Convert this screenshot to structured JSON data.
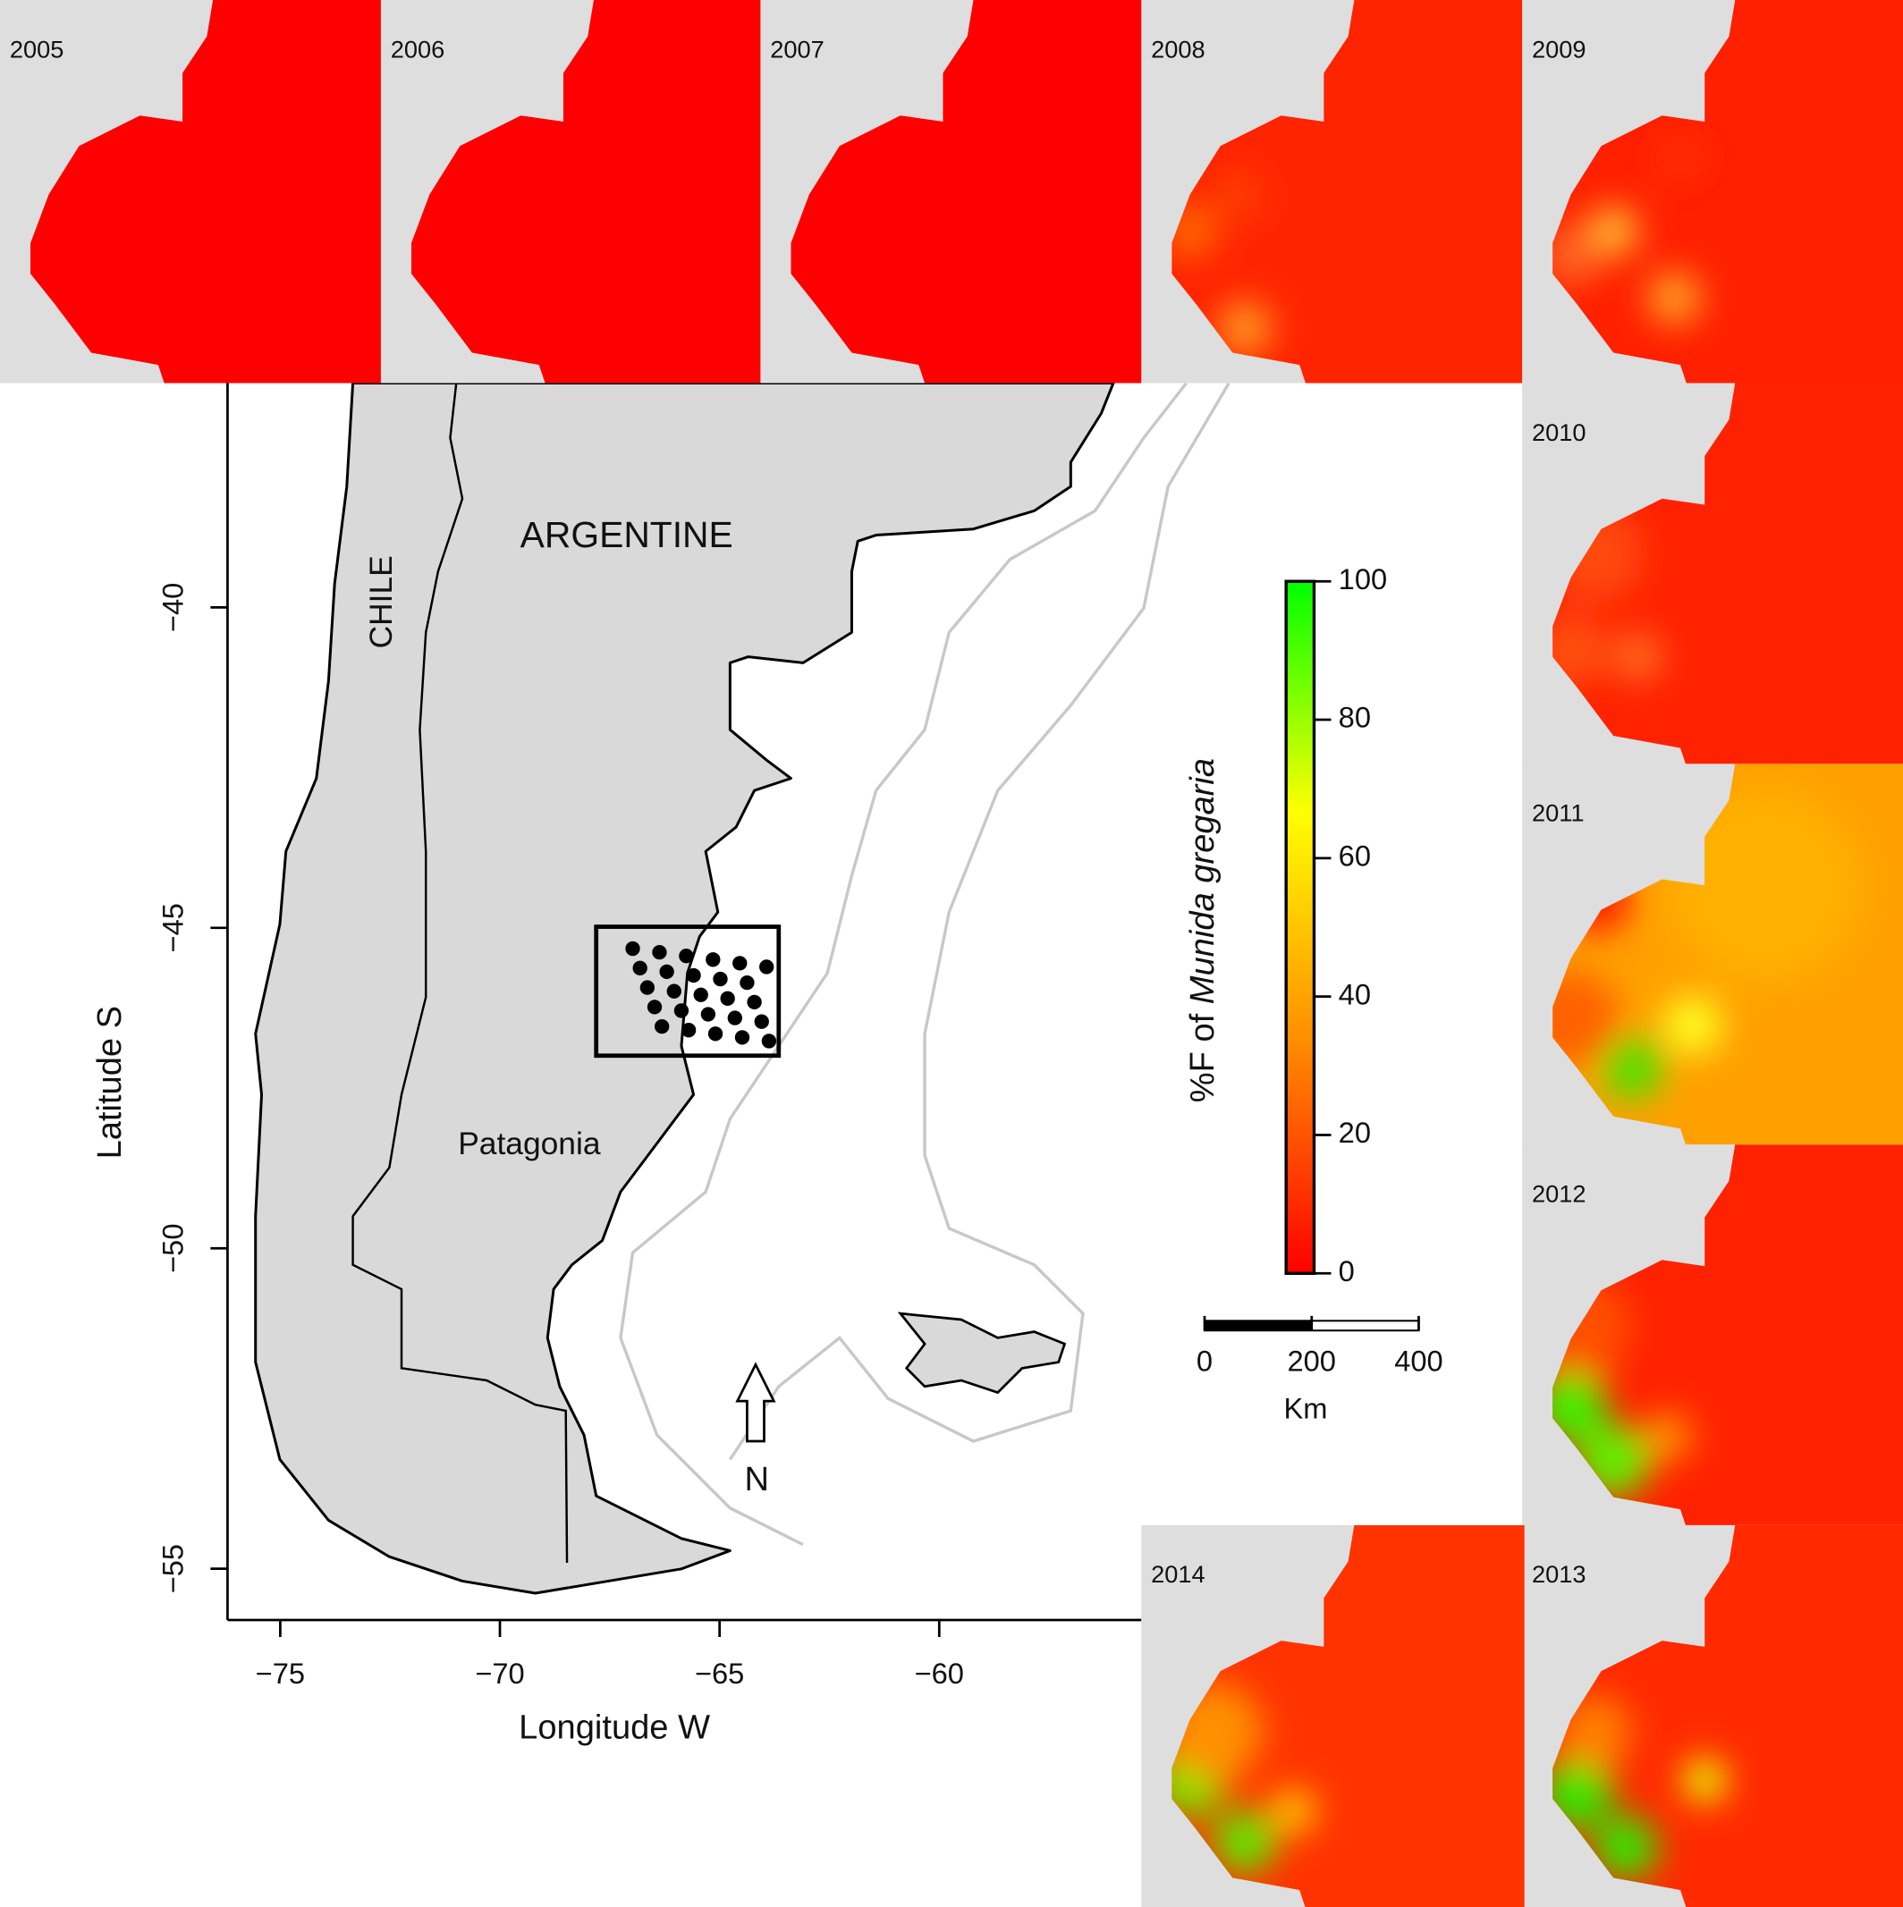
{
  "map": {
    "xlabel": "Longitude W",
    "ylabel": "Latitude S",
    "xlim": [
      -76.2,
      -55.4
    ],
    "ylim": [
      -55.8,
      -36.5
    ],
    "xticks": [
      {
        "value": -75,
        "label": "−75"
      },
      {
        "value": -70,
        "label": "−70"
      },
      {
        "value": -65,
        "label": "−65"
      },
      {
        "value": -60,
        "label": "−60"
      }
    ],
    "yticks": [
      {
        "value": -40,
        "label": "−40"
      },
      {
        "value": -45,
        "label": "−45"
      },
      {
        "value": -50,
        "label": "−50"
      },
      {
        "value": -55,
        "label": "−55"
      }
    ],
    "labels": {
      "country": "ARGENTINE",
      "neighbour": "CHILE",
      "region": "Patagonia",
      "north": "N"
    }
  },
  "colorbar": {
    "label_prefix": "%F of",
    "label_species": "Munida gregaria",
    "lim": [
      0,
      100
    ],
    "ticks": [
      0,
      20,
      40,
      60,
      80,
      100
    ],
    "colors": [
      "#ff0000",
      "#ff8c00",
      "#ffff00",
      "#00ff00"
    ]
  },
  "scale_bar": {
    "unit": "Km",
    "lim": [
      0,
      400
    ],
    "ticks": [
      0,
      200,
      400
    ]
  },
  "panels": [
    {
      "year": "2005",
      "color": "#ff0000"
    },
    {
      "year": "2006",
      "color": "#ff0000"
    },
    {
      "year": "2007",
      "color": "#ff0000"
    },
    {
      "year": "2008",
      "color": "#ff2400"
    },
    {
      "year": "2009",
      "color": "#ff2000"
    },
    {
      "year": "2010",
      "color": "#ff2200"
    },
    {
      "year": "2011",
      "color": "#ffa000"
    },
    {
      "year": "2012",
      "color": "#ff2200"
    },
    {
      "year": "2013",
      "color": "#ff2a00"
    },
    {
      "year": "2014",
      "color": "#ff3300"
    }
  ]
}
